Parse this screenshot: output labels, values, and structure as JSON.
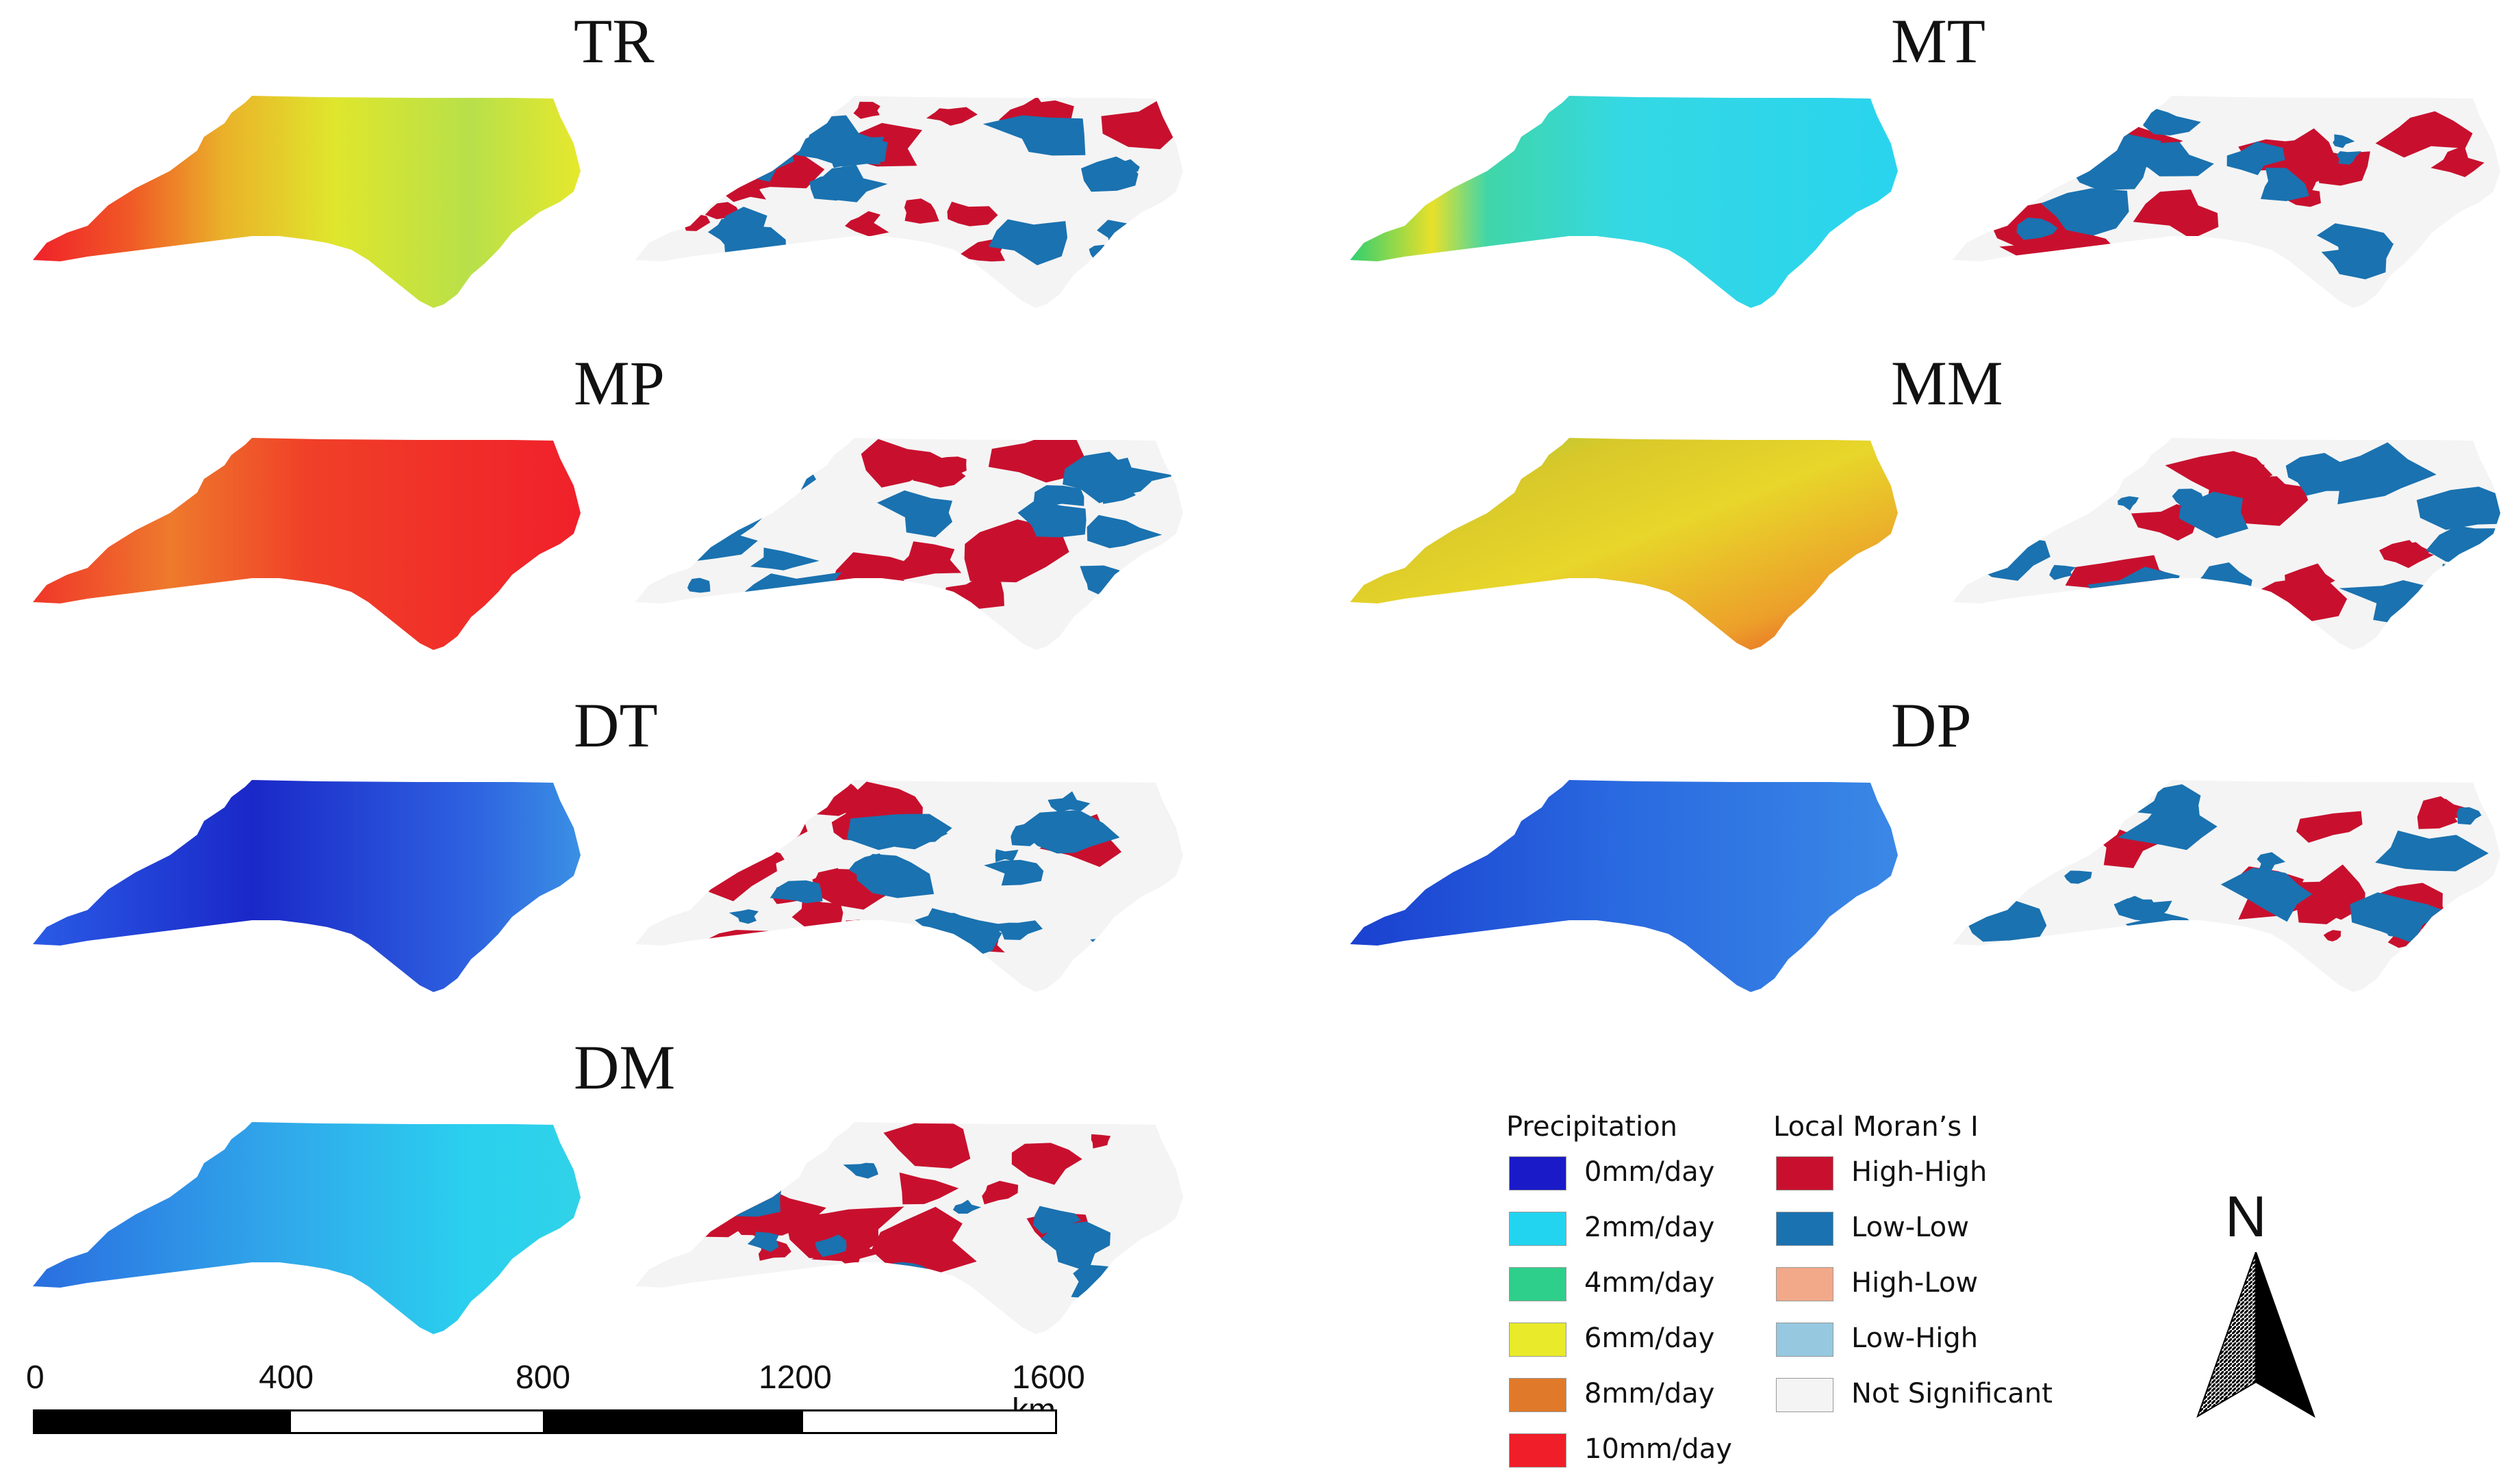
{
  "panels": [
    {
      "id": "TR",
      "title": "TR",
      "precip_fill": "url(#grad-TR)",
      "lisa_fill": "lisa-TR"
    },
    {
      "id": "MT",
      "title": "MT",
      "precip_fill": "url(#grad-MT)",
      "lisa_fill": "lisa-MT"
    },
    {
      "id": "MP",
      "title": "MP",
      "precip_fill": "url(#grad-MP)",
      "lisa_fill": "lisa-MP"
    },
    {
      "id": "MM",
      "title": "MM",
      "precip_fill": "url(#grad-MM)",
      "lisa_fill": "lisa-MM"
    },
    {
      "id": "DT",
      "title": "DT",
      "precip_fill": "url(#grad-DT)",
      "lisa_fill": "lisa-DT"
    },
    {
      "id": "DP",
      "title": "DP",
      "precip_fill": "url(#grad-DP)",
      "lisa_fill": "lisa-DP"
    },
    {
      "id": "DM",
      "title": "DM",
      "precip_fill": "url(#grad-DM)",
      "lisa_fill": "lisa-DM"
    }
  ],
  "legend": {
    "precipitation": {
      "title": "Precipitation",
      "items": [
        {
          "label": "0mm/day",
          "color": "#1a1ac8"
        },
        {
          "label": "2mm/day",
          "color": "#22d4f0"
        },
        {
          "label": "4mm/day",
          "color": "#2ecf8a"
        },
        {
          "label": "6mm/day",
          "color": "#e8ea2a"
        },
        {
          "label": "8mm/day",
          "color": "#e07a2a"
        },
        {
          "label": "10mm/day",
          "color": "#f01e28"
        }
      ]
    },
    "lisa": {
      "title": "Local Moran’s I",
      "items": [
        {
          "label": "High-High",
          "color": "#c8102e"
        },
        {
          "label": "Low-Low",
          "color": "#1a72b0"
        },
        {
          "label": "High-Low",
          "color": "#f2a98a"
        },
        {
          "label": "Low-High",
          "color": "#96c8e0"
        },
        {
          "label": "Not Significant",
          "color": "#f4f4f4"
        }
      ]
    }
  },
  "scale_bar": {
    "ticks": [
      "0",
      "400",
      "800",
      "1200",
      "1600 km"
    ]
  },
  "north_arrow": {
    "label": "N"
  }
}
